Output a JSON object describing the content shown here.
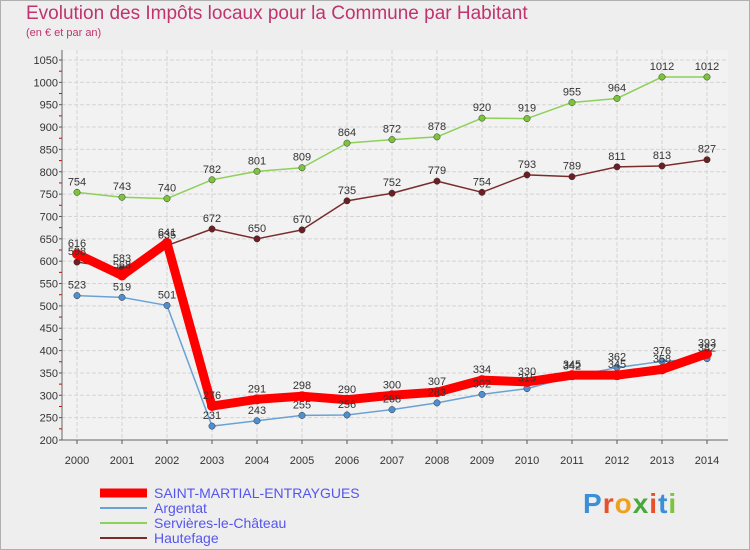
{
  "title": "Evolution des Impôts locaux pour la Commune par Habitant",
  "subtitle": "(en € et par an)",
  "logo": "Proxiti",
  "chart_data": {
    "type": "line",
    "title": "Evolution des Impôts locaux pour la Commune par Habitant",
    "ylabel": "(en € et par an)",
    "xlabel": "",
    "x": [
      2000,
      2001,
      2002,
      2003,
      2004,
      2005,
      2006,
      2007,
      2008,
      2009,
      2010,
      2011,
      2012,
      2013,
      2014
    ],
    "ylim": [
      200,
      1050
    ],
    "yticks": [
      200,
      250,
      300,
      350,
      400,
      450,
      500,
      550,
      600,
      650,
      700,
      750,
      800,
      850,
      900,
      950,
      1000,
      1050
    ],
    "grid": true,
    "series": [
      {
        "name": "Servières-le-Château",
        "color": "#8dd05a",
        "marker": "#7cc43c",
        "values": [
          754,
          743,
          740,
          782,
          801,
          809,
          864,
          872,
          878,
          920,
          919,
          955,
          964,
          1012,
          1012
        ]
      },
      {
        "name": "Hautefage",
        "color": "#7a2b2b",
        "marker": "#6b1f24",
        "values": [
          598,
          583,
          635,
          672,
          650,
          670,
          735,
          752,
          779,
          754,
          793,
          789,
          811,
          813,
          827
        ]
      },
      {
        "name": "Argentat",
        "color": "#6aa2d6",
        "marker": "#4d8fd0",
        "values": [
          523,
          519,
          501,
          231,
          243,
          255,
          256,
          268,
          283,
          302,
          315,
          342,
          362,
          376,
          382
        ]
      },
      {
        "name": "SAINT-MARTIAL-ENTRAYGUES",
        "color": "#ff0000",
        "marker": "#ff0000",
        "values": [
          616,
          568,
          641,
          276,
          291,
          298,
          290,
          300,
          307,
          334,
          330,
          345,
          345,
          358,
          393
        ]
      }
    ],
    "legend": [
      {
        "name": "SAINT-MARTIAL-ENTRAYGUES",
        "color": "#ff0000",
        "text_color": "#5555ee",
        "thick": true
      },
      {
        "name": "Argentat",
        "color": "#6aa2d6",
        "text_color": "#5555ee",
        "thick": false
      },
      {
        "name": "Servières-le-Château",
        "color": "#8dd05a",
        "text_color": "#5555ee",
        "thick": false
      },
      {
        "name": "Hautefage",
        "color": "#7a2b2b",
        "text_color": "#5555ee",
        "thick": false
      }
    ],
    "legend_position": "bottom-left"
  }
}
